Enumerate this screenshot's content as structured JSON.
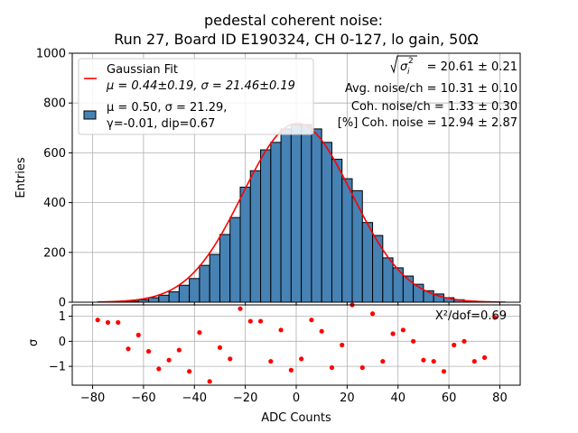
{
  "title_line1": "pedestal coherent noise:",
  "title_line2": "Run 27, Board ID E190324, CH 0-127, lo gain, 50Ω",
  "ylabel_top": "Entries",
  "ylabel_bottom": "σ",
  "xlabel": "ADC Counts",
  "legend": {
    "gauss_line1": "Gaussian Fit",
    "gauss_line2": "μ = 0.44±0.19, σ = 21.46±0.19",
    "hist_line1": "μ = 0.50, σ = 21.29,",
    "hist_line2": "γ=-0.01, dip=0.67"
  },
  "annotations": {
    "sigma_sqrt_label": "σ",
    "sigma_sub": "i",
    "sigma_sup": "2",
    "sigma_value": " = 20.61 ± 0.21",
    "avg_noise": "Avg. noise/ch = 10.31 ± 0.10",
    "coh_noise": "Coh. noise/ch = 1.33 ± 0.30",
    "pct_coh_noise": "[%] Coh. noise = 12.94  ± 2.87",
    "chi2": "X²/dof=0.69"
  },
  "colors": {
    "bar": "#4682b4",
    "fit": "#ff0000",
    "residual": "#ff0000",
    "grid": "#b0b0b0"
  },
  "chart_data": [
    {
      "type": "bar",
      "title": "pedestal coherent noise:\nRun 27, Board ID E190324, CH 0-127, lo gain, 50Ω",
      "ylabel": "Entries",
      "xlim": [
        -88,
        88
      ],
      "ylim": [
        0,
        1000
      ],
      "xticks": [
        -80,
        -60,
        -40,
        -20,
        0,
        20,
        40,
        60,
        80
      ],
      "yticks": [
        0,
        200,
        400,
        600,
        800,
        1000
      ],
      "grid": true,
      "legend_position": "top-left",
      "bin_width": 4,
      "bin_left_edges": [
        -78,
        -74,
        -70,
        -66,
        -62,
        -58,
        -54,
        -50,
        -46,
        -42,
        -38,
        -34,
        -30,
        -26,
        -22,
        -18,
        -14,
        -10,
        -6,
        -2,
        2,
        6,
        10,
        14,
        18,
        22,
        26,
        30,
        34,
        38,
        42,
        46,
        50,
        54,
        58,
        62,
        66,
        70,
        74,
        78
      ],
      "values": [
        1,
        2,
        3,
        4,
        10,
        18,
        28,
        42,
        68,
        95,
        148,
        192,
        272,
        340,
        462,
        528,
        612,
        642,
        696,
        712,
        713,
        696,
        642,
        574,
        496,
        448,
        320,
        268,
        178,
        138,
        105,
        72,
        46,
        33,
        18,
        10,
        4,
        2,
        1,
        1
      ],
      "fit": {
        "name": "Gaussian Fit",
        "mu": 0.44,
        "sigma": 21.46,
        "amplitude": 718
      }
    },
    {
      "type": "scatter",
      "ylabel": "σ",
      "xlabel": "ADC Counts",
      "xlim": [
        -88,
        88
      ],
      "ylim": [
        -1.75,
        1.45
      ],
      "yticks": [
        -1,
        0,
        1
      ],
      "grid": true,
      "x": [
        -78,
        -74,
        -70,
        -66,
        -62,
        -58,
        -54,
        -50,
        -46,
        -42,
        -38,
        -34,
        -30,
        -26,
        -22,
        -18,
        -14,
        -10,
        -6,
        -2,
        2,
        6,
        10,
        14,
        18,
        22,
        26,
        30,
        34,
        38,
        42,
        46,
        50,
        54,
        58,
        62,
        66,
        70,
        74,
        78
      ],
      "y": [
        0.85,
        0.75,
        0.75,
        -0.3,
        0.25,
        -0.4,
        -1.1,
        -0.75,
        -0.35,
        -1.2,
        0.35,
        -1.6,
        -0.25,
        -0.7,
        1.3,
        0.8,
        0.8,
        -0.8,
        0.45,
        -1.15,
        -0.7,
        0.85,
        0.4,
        -1.05,
        -0.15,
        1.45,
        -1.05,
        1.1,
        -0.8,
        0.3,
        0.45,
        0.0,
        -0.75,
        -0.8,
        -1.2,
        -0.15,
        0.0,
        -0.8,
        -0.65,
        0.95
      ]
    }
  ]
}
